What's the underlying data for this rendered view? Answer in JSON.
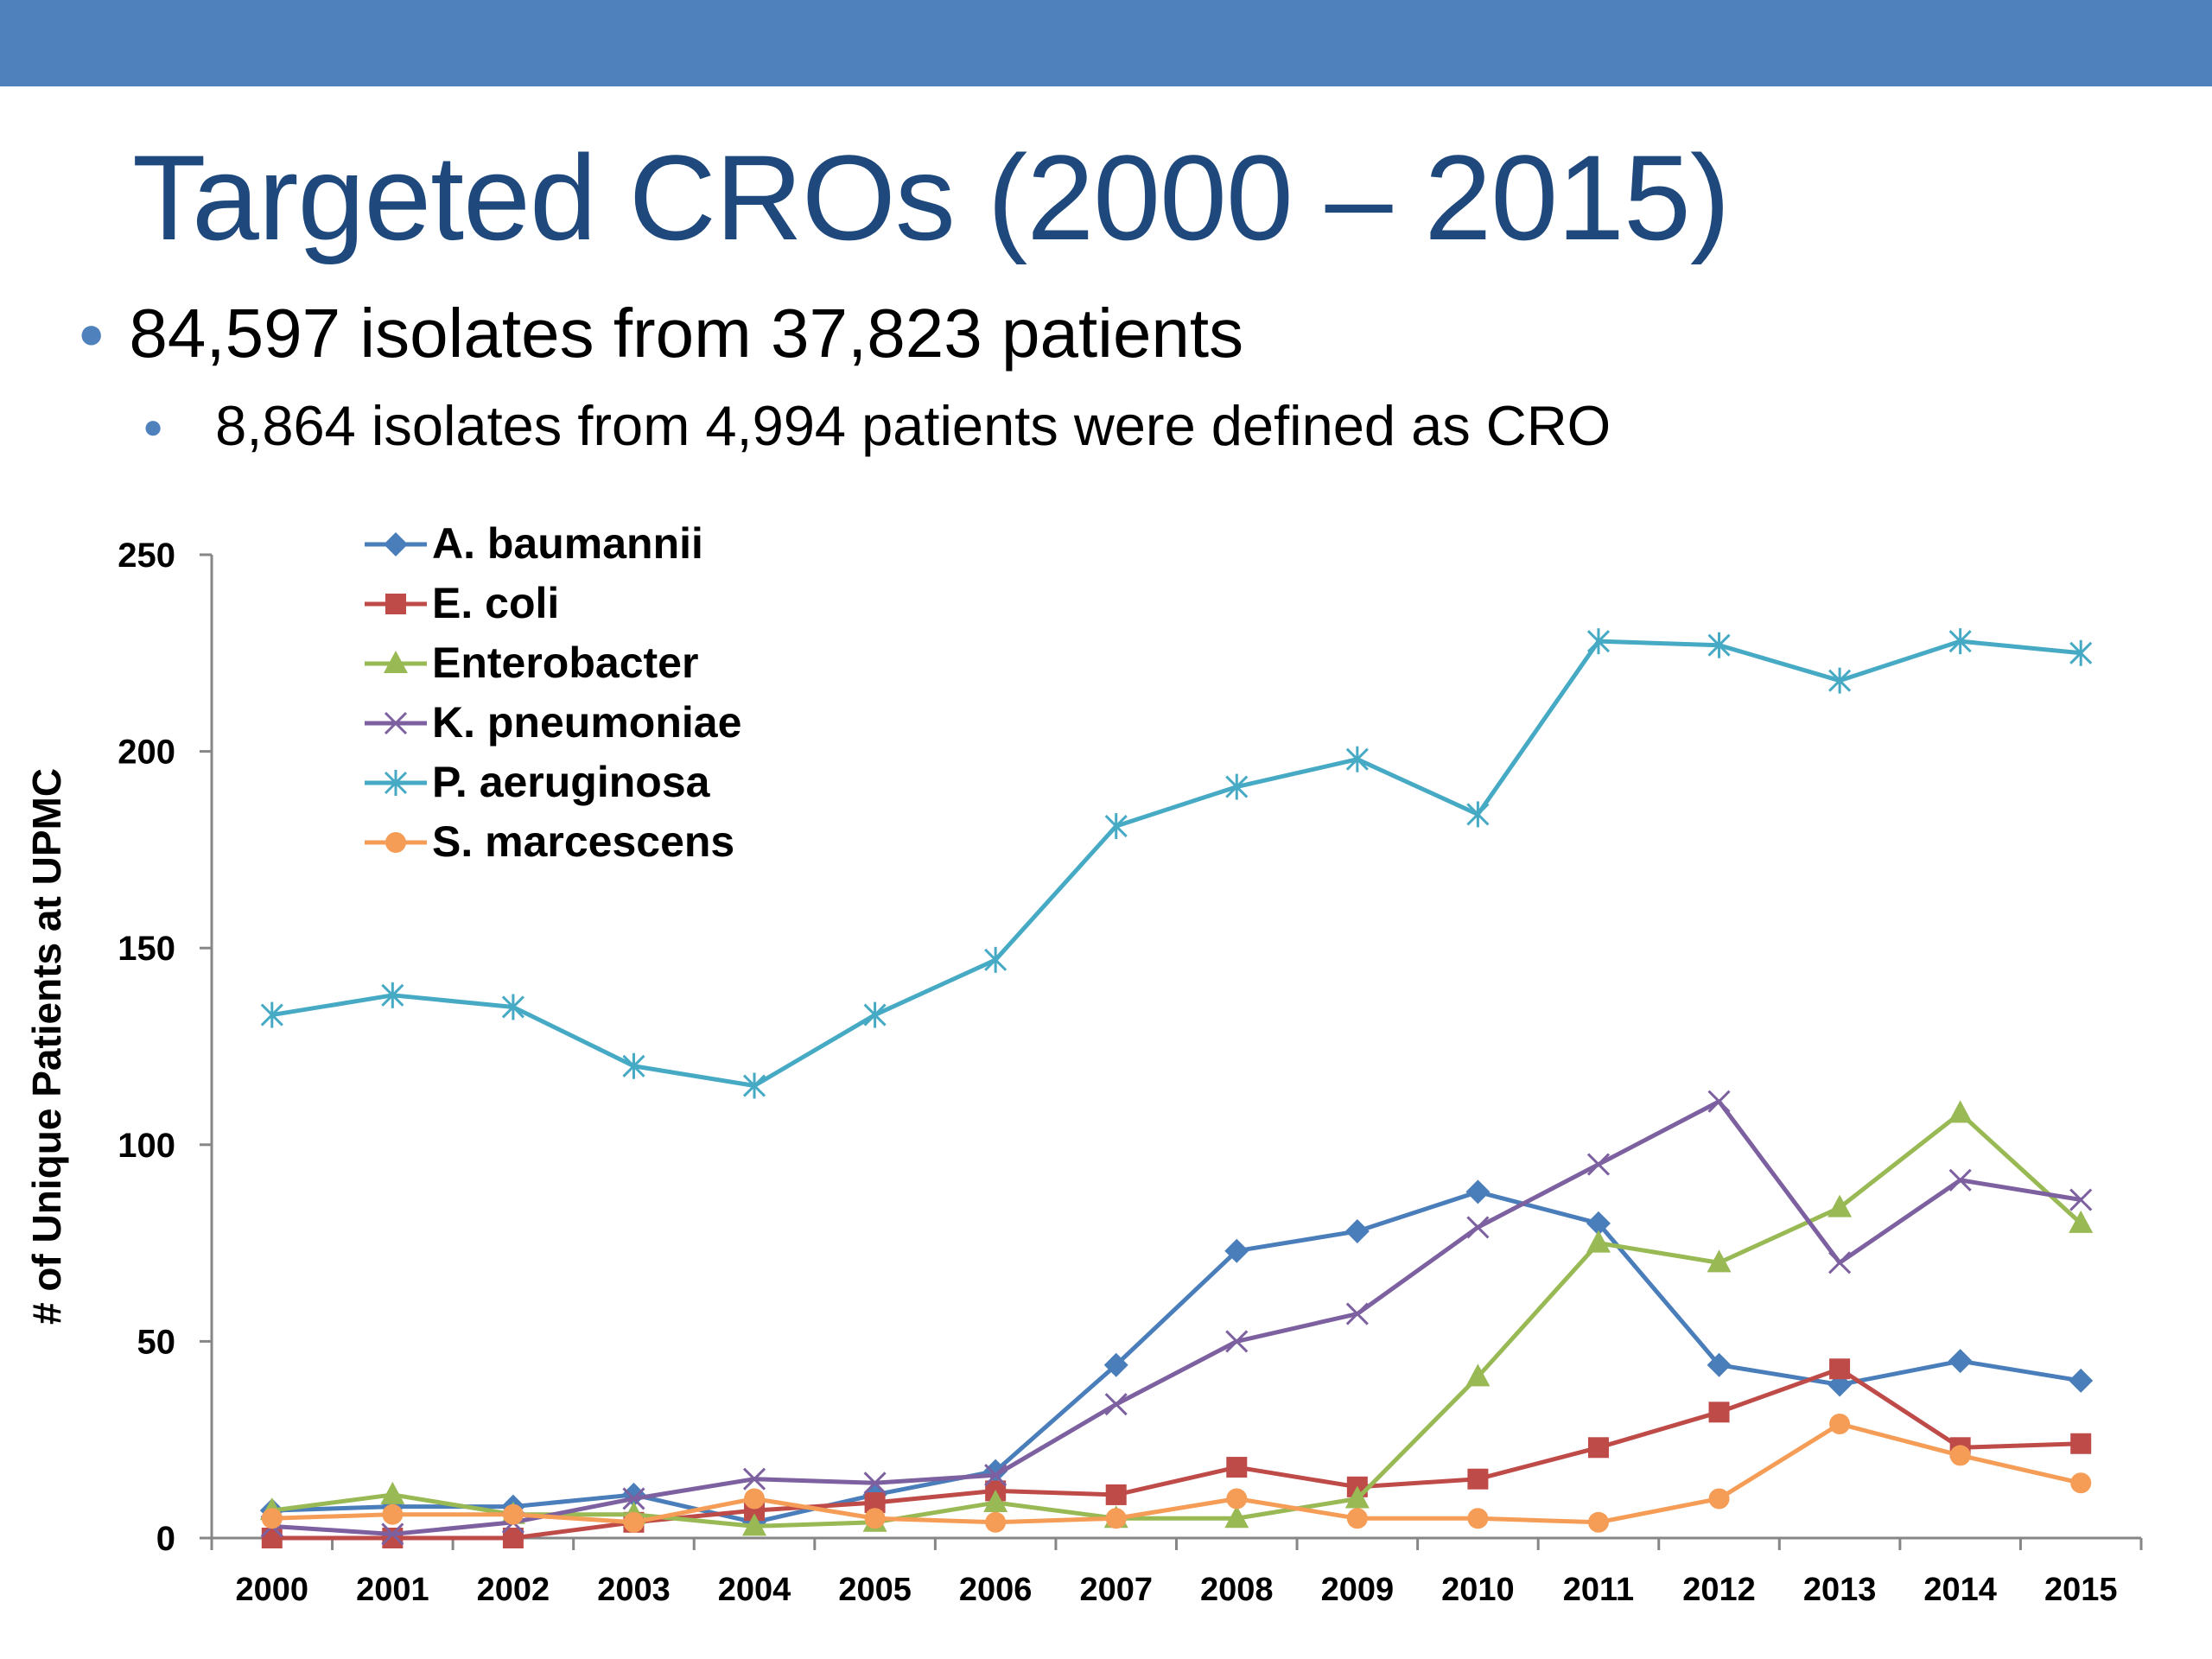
{
  "slide": {
    "title": "Targeted CROs (2000 – 2015)",
    "bullet1": "84,597 isolates from 37,823 patients",
    "bullet2": "8,864 isolates from 4,994 patients were defined as CRO"
  },
  "colors": {
    "header_bar": "#4f81bd",
    "title": "#1f497d"
  },
  "chart_data": {
    "type": "line",
    "title": "",
    "xlabel": "",
    "ylabel": "# of Unique Patients at UPMC",
    "ylim": [
      0,
      250
    ],
    "yticks": [
      0,
      50,
      100,
      150,
      200,
      250
    ],
    "grid": false,
    "legend_position": "top-left",
    "categories": [
      "2000",
      "2001",
      "2002",
      "2003",
      "2004",
      "2005",
      "2006",
      "2007",
      "2008",
      "2009",
      "2010",
      "2011",
      "2012",
      "2013",
      "2014",
      "2015"
    ],
    "series": [
      {
        "name": "A. baumannii",
        "color": "#4a7ebb",
        "marker": "diamond",
        "values": [
          7,
          8,
          8,
          11,
          4,
          11,
          17,
          44,
          73,
          78,
          88,
          80,
          44,
          39,
          45,
          40
        ]
      },
      {
        "name": "E. coli",
        "color": "#be4b48",
        "marker": "square",
        "values": [
          0,
          0,
          0,
          4,
          7,
          9,
          12,
          11,
          18,
          13,
          15,
          23,
          32,
          43,
          23,
          24
        ]
      },
      {
        "name": "Enterobacter",
        "color": "#98b954",
        "marker": "triangle",
        "values": [
          7,
          11,
          6,
          6,
          3,
          4,
          9,
          5,
          5,
          10,
          41,
          75,
          70,
          84,
          108,
          80
        ]
      },
      {
        "name": "K. pneumoniae",
        "color": "#7d60a0",
        "marker": "x",
        "values": [
          3,
          1,
          4,
          10,
          15,
          14,
          16,
          34,
          50,
          57,
          79,
          95,
          111,
          70,
          91,
          86
        ]
      },
      {
        "name": "P. aeruginosa",
        "color": "#46aac5",
        "marker": "star",
        "values": [
          133,
          138,
          135,
          120,
          115,
          133,
          147,
          181,
          191,
          198,
          184,
          228,
          227,
          218,
          228,
          225
        ]
      },
      {
        "name": "S. marcescens",
        "color": "#f59d56",
        "marker": "circle",
        "values": [
          5,
          6,
          6,
          4,
          10,
          5,
          4,
          5,
          10,
          5,
          5,
          4,
          10,
          29,
          21,
          14
        ]
      }
    ]
  }
}
